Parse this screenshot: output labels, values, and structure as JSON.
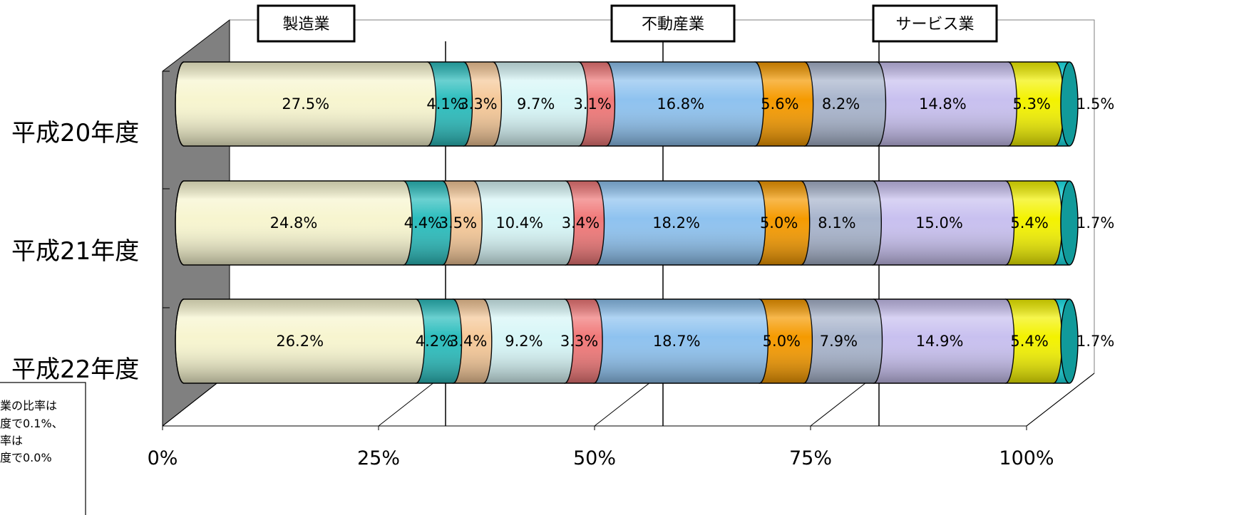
{
  "chart_data": {
    "type": "bar",
    "orientation": "horizontal",
    "stacked": "percent",
    "style": "3d-cylinder",
    "categories": [
      "平成20年度",
      "平成21年度",
      "平成22年度"
    ],
    "series": [
      {
        "values": [
          27.5,
          24.8,
          26.2
        ],
        "color": "#f7f5cf",
        "labels": [
          "27.5%",
          "24.8%",
          "26.2%"
        ]
      },
      {
        "values": [
          4.1,
          4.4,
          4.2
        ],
        "color": "#2bbdbd",
        "labels": [
          "4.1%",
          "4.4%",
          "4.2%"
        ]
      },
      {
        "values": [
          3.3,
          3.5,
          3.4
        ],
        "color": "#f5c898",
        "labels": [
          "3.3%",
          "3.5%",
          "3.4%"
        ]
      },
      {
        "values": [
          9.7,
          10.4,
          9.2
        ],
        "color": "#d7f6f7",
        "labels": [
          "9.7%",
          "10.4%",
          "9.2%"
        ]
      },
      {
        "values": [
          3.1,
          3.4,
          3.3
        ],
        "color": "#f07878",
        "labels": [
          "3.1%",
          "3.4%",
          "3.3%"
        ]
      },
      {
        "values": [
          16.8,
          18.2,
          18.7
        ],
        "color": "#8ec2ef",
        "labels": [
          "16.8%",
          "18.2%",
          "18.7%"
        ]
      },
      {
        "values": [
          5.6,
          5.0,
          5.0
        ],
        "color": "#f59a00",
        "labels": [
          "5.6%",
          "5.0%",
          "5.0%"
        ]
      },
      {
        "values": [
          8.2,
          8.1,
          7.9
        ],
        "color": "#a8b4cc",
        "labels": [
          "8.2%",
          "8.1%",
          "7.9%"
        ]
      },
      {
        "values": [
          14.8,
          15.0,
          14.9
        ],
        "color": "#c8c0ef",
        "labels": [
          "14.8%",
          "15.0%",
          "14.9%"
        ]
      },
      {
        "values": [
          5.3,
          5.4,
          5.4
        ],
        "color": "#f3f200",
        "labels": [
          "5.3%",
          "5.4%",
          "5.4%"
        ]
      },
      {
        "values": [
          1.5,
          1.7,
          1.7
        ],
        "color": "#1ce8ee",
        "labels": [
          "",
          "",
          ""
        ]
      },
      {
        "values": [
          0,
          0,
          0
        ],
        "color": "#119a9a",
        "labels": [
          "1.5%",
          "1.7%",
          "1.7%"
        ]
      }
    ],
    "x_ticks": [
      "0%",
      "25%",
      "50%",
      "75%",
      "100%"
    ],
    "xlim": [
      0,
      100
    ],
    "annotations": [
      {
        "text": "製造業",
        "value": 32.3
      },
      {
        "text": "不動産業",
        "value": 57.8
      },
      {
        "text": "サービス業",
        "value": 83.8
      }
    ],
    "note_lines": [
      "業の比率は",
      "度で0.1%、",
      "率は",
      "度で0.0%"
    ],
    "grid": true,
    "legend": "none"
  }
}
